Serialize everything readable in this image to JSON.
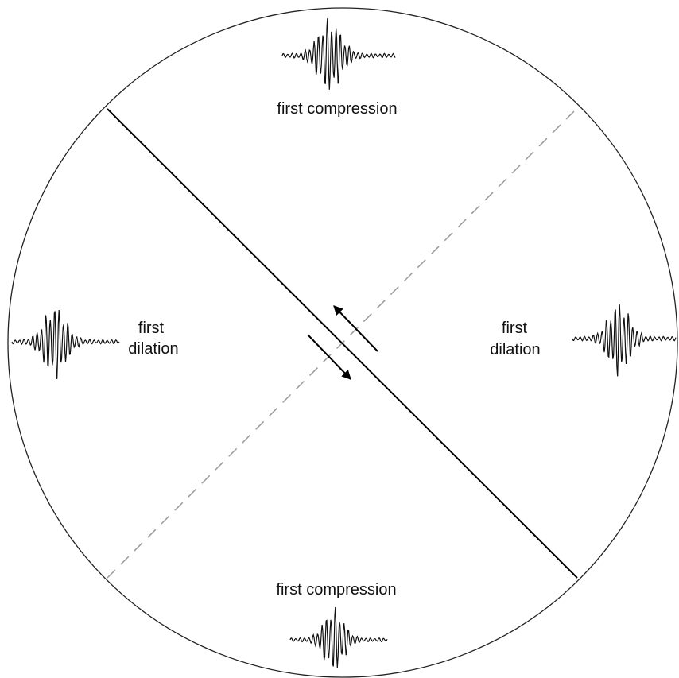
{
  "labels": {
    "top": "first compression",
    "bottom": "first compression",
    "left": [
      "first",
      "dilation"
    ],
    "right": [
      "first",
      "dilation"
    ]
  }
}
